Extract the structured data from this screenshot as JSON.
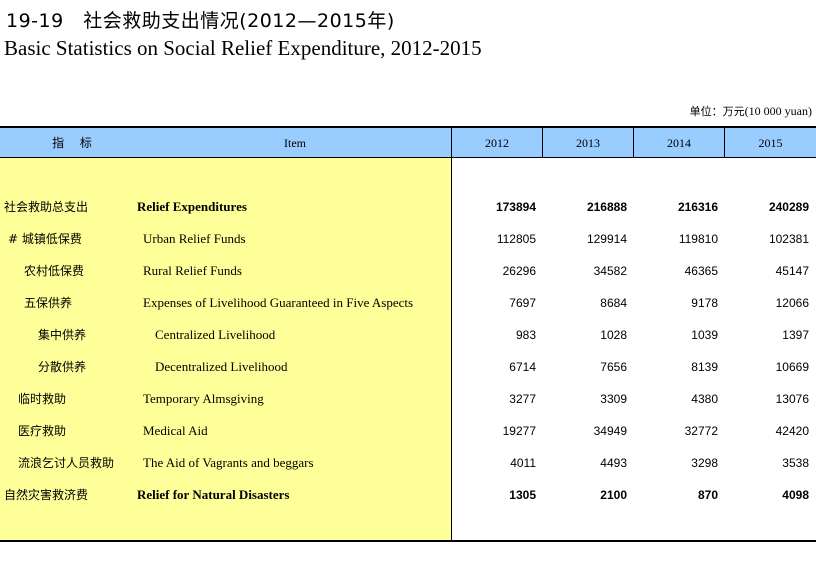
{
  "title": {
    "cn": "19-19　社会救助支出情况(2012—2015年)",
    "en": "Basic Statistics on Social Relief Expenditure, 2012-2015"
  },
  "unit": {
    "cn": "单位：万元",
    "en": "(10 000 yuan)"
  },
  "header": {
    "indicator_cn": "指 标",
    "item_en": "Item",
    "years": [
      "2012",
      "2013",
      "2014",
      "2015"
    ]
  },
  "rows": [
    {
      "cn": "社会救助总支出",
      "en": "Relief Expenditures",
      "values": [
        "173894",
        "216888",
        "216316",
        "240289"
      ],
      "bold": true
    },
    {
      "cn": "# 城镇低保费",
      "en": "Urban Relief Funds",
      "values": [
        "112805",
        "129914",
        "119810",
        "102381"
      ],
      "bold": false
    },
    {
      "cn": "农村低保费",
      "en": "Rural Relief Funds",
      "values": [
        "26296",
        "34582",
        "46365",
        "45147"
      ],
      "bold": false
    },
    {
      "cn": "五保供养",
      "en": "Expenses of Livelihood Guaranteed in Five Aspects",
      "values": [
        "7697",
        "8684",
        "9178",
        "12066"
      ],
      "bold": false
    },
    {
      "cn": "集中供养",
      "en": "Centralized Livelihood",
      "values": [
        "983",
        "1028",
        "1039",
        "1397"
      ],
      "bold": false
    },
    {
      "cn": "分散供养",
      "en": "Decentralized Livelihood",
      "values": [
        "6714",
        "7656",
        "8139",
        "10669"
      ],
      "bold": false
    },
    {
      "cn": "临时救助",
      "en": "Temporary Almsgiving",
      "values": [
        "3277",
        "3309",
        "4380",
        "13076"
      ],
      "bold": false
    },
    {
      "cn": "医疗救助",
      "en": "Medical Aid",
      "values": [
        "19277",
        "34949",
        "32772",
        "42420"
      ],
      "bold": false
    },
    {
      "cn": "流浪乞讨人员救助",
      "en": "The Aid of Vagrants and beggars",
      "values": [
        "4011",
        "4493",
        "3298",
        "3538"
      ],
      "bold": false
    },
    {
      "cn": "自然灾害救济费",
      "en": "Relief for Natural Disasters",
      "values": [
        "1305",
        "2100",
        "870",
        "4098"
      ],
      "bold": true
    }
  ],
  "colors": {
    "header_bg": "#99ccff",
    "label_bg": "#ffff99"
  }
}
